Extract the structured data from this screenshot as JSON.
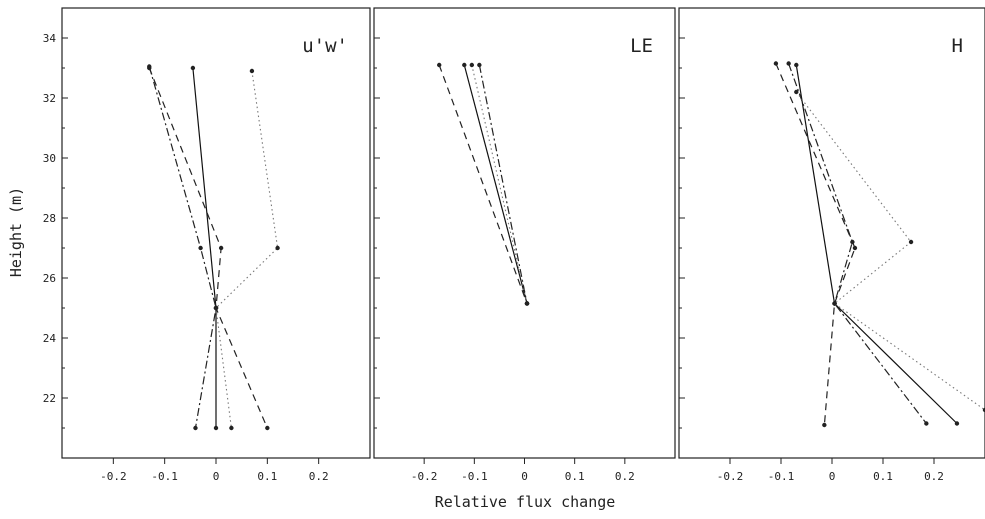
{
  "chart_data": {
    "type": "line",
    "xlabel": "Relative flux change",
    "ylabel": "Height (m)",
    "ylim": [
      20,
      35
    ],
    "yticks": [
      22,
      24,
      26,
      28,
      30,
      32,
      34
    ],
    "xticks": [
      -0.2,
      -0.1,
      0,
      0.1,
      0.2
    ],
    "xtick_labels": [
      "-0.2",
      "-0.1",
      "0",
      "0.1",
      "0.2"
    ],
    "grid": false,
    "panels": [
      {
        "title": "u'w'",
        "xlim": [
          -0.3,
          0.3
        ],
        "series": [
          {
            "style": "solid",
            "points": [
              [
                -0.045,
                33.0
              ],
              [
                0.0,
                25.0
              ],
              [
                0.0,
                21.0
              ]
            ]
          },
          {
            "style": "dashed",
            "points": [
              [
                -0.13,
                33.0
              ],
              [
                0.01,
                27.0
              ],
              [
                0.0,
                25.0
              ],
              [
                0.1,
                21.0
              ]
            ]
          },
          {
            "style": "dashdot",
            "points": [
              [
                -0.13,
                33.05
              ],
              [
                -0.03,
                27.0
              ],
              [
                0.0,
                25.0
              ],
              [
                -0.04,
                21.0
              ]
            ]
          },
          {
            "style": "dotted",
            "points": [
              [
                0.07,
                32.9
              ],
              [
                0.12,
                27.0
              ],
              [
                0.0,
                25.0
              ],
              [
                0.03,
                21.0
              ]
            ]
          }
        ]
      },
      {
        "title": "LE",
        "xlim": [
          -0.3,
          0.3
        ],
        "series": [
          {
            "style": "solid",
            "points": [
              [
                -0.12,
                33.1
              ],
              [
                0.005,
                25.15
              ]
            ]
          },
          {
            "style": "dashed",
            "points": [
              [
                -0.17,
                33.1
              ],
              [
                0.005,
                25.15
              ]
            ]
          },
          {
            "style": "dashdot",
            "points": [
              [
                -0.09,
                33.1
              ],
              [
                0.005,
                25.15
              ]
            ]
          },
          {
            "style": "dotted",
            "points": [
              [
                -0.105,
                33.1
              ],
              [
                0.005,
                25.15
              ]
            ]
          }
        ]
      },
      {
        "title": "H",
        "xlim": [
          -0.3,
          0.3
        ],
        "series": [
          {
            "style": "solid",
            "points": [
              [
                -0.07,
                33.1
              ],
              [
                0.005,
                25.15
              ],
              [
                0.245,
                21.15
              ]
            ]
          },
          {
            "style": "dashed",
            "points": [
              [
                -0.11,
                33.15
              ],
              [
                0.045,
                27.0
              ],
              [
                0.005,
                25.15
              ],
              [
                -0.015,
                21.1
              ]
            ]
          },
          {
            "style": "dashdot",
            "points": [
              [
                -0.085,
                33.15
              ],
              [
                0.04,
                27.2
              ],
              [
                0.005,
                25.15
              ],
              [
                0.185,
                21.15
              ]
            ]
          },
          {
            "style": "dotted",
            "points": [
              [
                -0.07,
                32.2
              ],
              [
                0.155,
                27.2
              ],
              [
                0.005,
                25.15
              ],
              [
                0.3,
                21.6
              ]
            ]
          }
        ]
      }
    ]
  }
}
